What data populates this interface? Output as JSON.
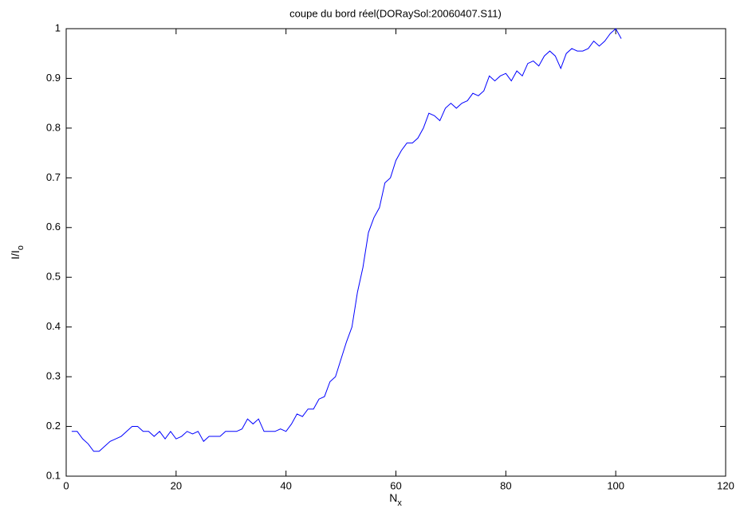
{
  "chart_data": {
    "type": "line",
    "title": "coupe du bord réel(DORaySol:20060407.S11)",
    "xlabel": {
      "text": "N",
      "sub": "x"
    },
    "ylabel": {
      "text": "I/I",
      "sub": "o"
    },
    "x": [
      1,
      2,
      3,
      4,
      5,
      6,
      7,
      8,
      9,
      10,
      11,
      12,
      13,
      14,
      15,
      16,
      17,
      18,
      19,
      20,
      21,
      22,
      23,
      24,
      25,
      26,
      27,
      28,
      29,
      30,
      31,
      32,
      33,
      34,
      35,
      36,
      37,
      38,
      39,
      40,
      41,
      42,
      43,
      44,
      45,
      46,
      47,
      48,
      49,
      50,
      51,
      52,
      53,
      54,
      55,
      56,
      57,
      58,
      59,
      60,
      61,
      62,
      63,
      64,
      65,
      66,
      67,
      68,
      69,
      70,
      71,
      72,
      73,
      74,
      75,
      76,
      77,
      78,
      79,
      80,
      81,
      82,
      83,
      84,
      85,
      86,
      87,
      88,
      89,
      90,
      91,
      92,
      93,
      94,
      95,
      96,
      97,
      98,
      99,
      100,
      101
    ],
    "series": [
      {
        "color": "#0000ff",
        "values": [
          0.19,
          0.19,
          0.175,
          0.165,
          0.15,
          0.15,
          0.16,
          0.17,
          0.175,
          0.18,
          0.19,
          0.2,
          0.2,
          0.19,
          0.19,
          0.18,
          0.19,
          0.175,
          0.19,
          0.175,
          0.18,
          0.19,
          0.185,
          0.19,
          0.17,
          0.18,
          0.18,
          0.18,
          0.19,
          0.19,
          0.19,
          0.195,
          0.215,
          0.205,
          0.215,
          0.19,
          0.19,
          0.19,
          0.195,
          0.19,
          0.205,
          0.225,
          0.22,
          0.235,
          0.235,
          0.255,
          0.26,
          0.29,
          0.3,
          0.335,
          0.37,
          0.4,
          0.47,
          0.52,
          0.59,
          0.62,
          0.64,
          0.69,
          0.7,
          0.735,
          0.755,
          0.77,
          0.77,
          0.78,
          0.8,
          0.83,
          0.825,
          0.815,
          0.84,
          0.85,
          0.84,
          0.85,
          0.855,
          0.87,
          0.865,
          0.875,
          0.905,
          0.895,
          0.905,
          0.91,
          0.895,
          0.915,
          0.905,
          0.93,
          0.935,
          0.925,
          0.945,
          0.955,
          0.945,
          0.92,
          0.95,
          0.96,
          0.955,
          0.955,
          0.96,
          0.975,
          0.965,
          0.975,
          0.99,
          1.0,
          0.98
        ]
      }
    ],
    "xlim": [
      0,
      120
    ],
    "xticks": [
      0,
      20,
      40,
      60,
      80,
      100,
      120
    ],
    "ylim": [
      0.1,
      1
    ],
    "yticks": [
      0.1,
      0.2,
      0.3,
      0.4,
      0.5,
      0.6,
      0.7,
      0.8,
      0.9,
      1
    ],
    "grid": false
  }
}
